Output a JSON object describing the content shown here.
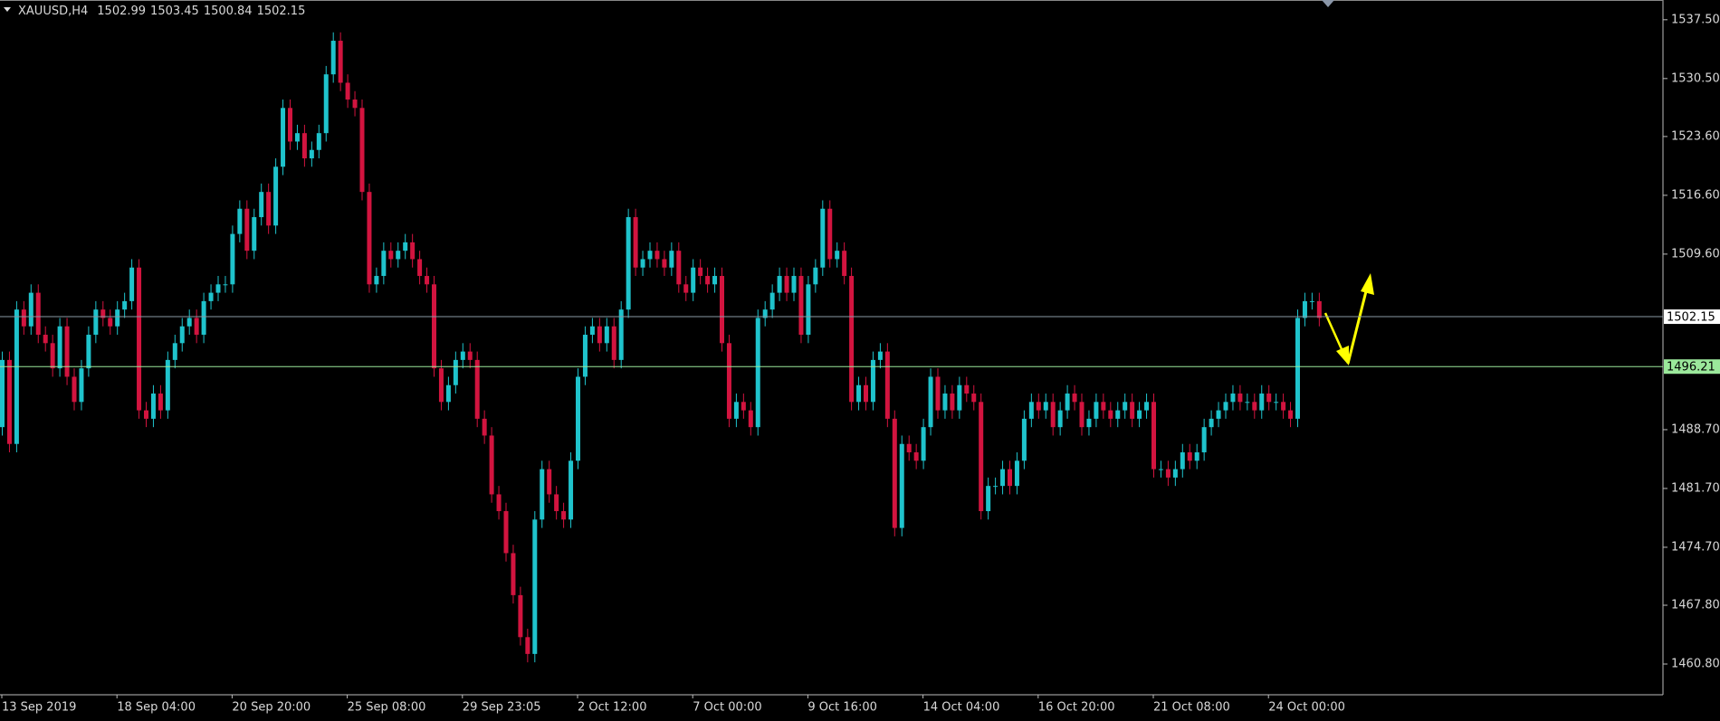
{
  "chart_data": {
    "type": "candlestick",
    "symbol": "XAUUSD,H4",
    "ohlc_readout": [
      1502.99,
      1503.45,
      1500.84,
      1502.15
    ],
    "up_color": "#1fc3cc",
    "down_color": "#d2143f",
    "ylim": [
      1457.14,
      1539.85
    ],
    "yticks": [
      {
        "value": 1460.8,
        "label": "1460.80"
      },
      {
        "value": 1467.8,
        "label": "1467.80"
      },
      {
        "value": 1474.7,
        "label": "1474.70"
      },
      {
        "value": 1481.7,
        "label": "1481.70"
      },
      {
        "value": 1488.7,
        "label": "1488.70"
      },
      {
        "value": 1509.6,
        "label": "1509.60"
      },
      {
        "value": 1516.6,
        "label": "1516.60"
      },
      {
        "value": 1523.6,
        "label": "1523.60"
      },
      {
        "value": 1530.5,
        "label": "1530.50"
      },
      {
        "value": 1537.5,
        "label": "1537.50"
      }
    ],
    "hlines": [
      {
        "value": 1502.15,
        "color": "#8a9aa4",
        "label_bg": "#ffffff"
      },
      {
        "value": 1496.21,
        "color": "#9be89b",
        "label_bg": "#9be89b"
      }
    ],
    "categories": [
      "13 Sep 2019",
      null,
      null,
      null,
      null,
      null,
      null,
      null,
      null,
      null,
      null,
      null,
      null,
      null,
      null,
      null,
      "18 Sep 04:00",
      null,
      null,
      null,
      null,
      null,
      null,
      null,
      null,
      null,
      null,
      null,
      null,
      null,
      null,
      null,
      "20 Sep 20:00",
      null,
      null,
      null,
      null,
      null,
      null,
      null,
      null,
      null,
      null,
      null,
      null,
      null,
      null,
      null,
      "25 Sep 08:00",
      null,
      null,
      null,
      null,
      null,
      null,
      null,
      null,
      null,
      null,
      null,
      null,
      null,
      null,
      null,
      "29 Sep 23:05",
      null,
      null,
      null,
      null,
      null,
      null,
      null,
      null,
      null,
      null,
      null,
      null,
      null,
      null,
      null,
      "2 Oct 12:00",
      null,
      null,
      null,
      null,
      null,
      null,
      null,
      null,
      null,
      null,
      null,
      null,
      null,
      null,
      null,
      "7 Oct 00:00",
      null,
      null,
      null,
      null,
      null,
      null,
      null,
      null,
      null,
      null,
      null,
      null,
      null,
      null,
      null,
      "9 Oct 16:00",
      null,
      null,
      null,
      null,
      null,
      null,
      null,
      null,
      null,
      null,
      null,
      null,
      null,
      null,
      null,
      "14 Oct 04:00",
      null,
      null,
      null,
      null,
      null,
      null,
      null,
      null,
      null,
      null,
      null,
      null,
      null,
      null,
      null,
      "16 Oct 20:00",
      null,
      null,
      null,
      null,
      null,
      null,
      null,
      null,
      null,
      null,
      null,
      null,
      null,
      null,
      null,
      "21 Oct 08:00",
      null,
      null,
      null,
      null,
      null,
      null,
      null,
      null,
      null,
      null,
      null,
      null,
      null,
      null,
      null,
      "24 Oct 00:00",
      null,
      null,
      null,
      null,
      null,
      null,
      null
    ],
    "open": [
      1489,
      1497,
      1487,
      1503,
      1501,
      1505,
      1500,
      1499,
      1496,
      1501,
      1495,
      1492,
      1496,
      1500,
      1503,
      1502,
      1501,
      1503,
      1504,
      1508,
      1491,
      1490,
      1493,
      1491,
      1497,
      1499,
      1501,
      1502,
      1500,
      1504,
      1505,
      1506,
      1506,
      1512,
      1515,
      1510,
      1514,
      1517,
      1513,
      1520,
      1527,
      1523,
      1524,
      1521,
      1522,
      1524,
      1531,
      1535,
      1530,
      1528,
      1527,
      1517,
      1506,
      1507,
      1510,
      1509,
      1510,
      1511,
      1509,
      1507,
      1506,
      1496,
      1492,
      1494,
      1497,
      1498,
      1497,
      1490,
      1488,
      1481,
      1479,
      1474,
      1469,
      1464,
      1462,
      1478,
      1484,
      1481,
      1479,
      1478,
      1485,
      1495,
      1500,
      1501,
      1499,
      1501,
      1497,
      1503,
      1514,
      1508,
      1509,
      1510,
      1509,
      1508,
      1510,
      1506,
      1505,
      1508,
      1507,
      1506,
      1507,
      1499,
      1490,
      1492,
      1491,
      1489,
      1502,
      1503,
      1505,
      1507,
      1505,
      1507,
      1500,
      1506,
      1508,
      1515,
      1509,
      1510,
      1507,
      1492,
      1494,
      1492,
      1497,
      1498,
      1490,
      1477,
      1487,
      1486,
      1485,
      1489,
      1495,
      1491,
      1493,
      1491,
      1494,
      1493,
      1492,
      1479,
      1482,
      1482,
      1484,
      1482,
      1485,
      1490,
      1492,
      1491,
      1492,
      1489,
      1491,
      1493,
      1492,
      1489,
      1490,
      1492,
      1491,
      1490,
      1491,
      1492,
      1490,
      1491,
      1492,
      1484,
      1484,
      1483,
      1484,
      1486,
      1485,
      1486,
      1489,
      1490,
      1491,
      1492,
      1493,
      1492,
      1492,
      1491,
      1493,
      1492,
      1492,
      1491,
      1490,
      1502,
      1504,
      1504
    ],
    "high": [
      1498,
      1498,
      1504,
      1504,
      1506,
      1506,
      1501,
      1500,
      1502,
      1502,
      1496,
      1497,
      1501,
      1504,
      1504,
      1503,
      1504,
      1505,
      1509,
      1509,
      1492,
      1494,
      1494,
      1498,
      1500,
      1502,
      1503,
      1503,
      1505,
      1506,
      1507,
      1507,
      1513,
      1516,
      1516,
      1515,
      1518,
      1518,
      1521,
      1528,
      1528,
      1525,
      1525,
      1523,
      1525,
      1532,
      1536,
      1536,
      1531,
      1529,
      1528,
      1518,
      1508,
      1511,
      1511,
      1511,
      1512,
      1512,
      1510,
      1508,
      1507,
      1497,
      1495,
      1498,
      1499,
      1499,
      1498,
      1491,
      1489,
      1482,
      1480,
      1475,
      1470,
      1465,
      1479,
      1485,
      1485,
      1482,
      1480,
      1486,
      1496,
      1501,
      1502,
      1502,
      1502,
      1502,
      1504,
      1515,
      1515,
      1510,
      1511,
      1511,
      1510,
      1511,
      1511,
      1507,
      1509,
      1509,
      1508,
      1508,
      1508,
      1500,
      1493,
      1493,
      1492,
      1503,
      1504,
      1506,
      1508,
      1508,
      1508,
      1508,
      1507,
      1509,
      1516,
      1516,
      1511,
      1511,
      1508,
      1495,
      1495,
      1498,
      1499,
      1499,
      1491,
      1488,
      1488,
      1487,
      1490,
      1496,
      1496,
      1494,
      1494,
      1495,
      1495,
      1494,
      1493,
      1483,
      1483,
      1485,
      1485,
      1486,
      1491,
      1493,
      1493,
      1493,
      1493,
      1492,
      1494,
      1494,
      1493,
      1491,
      1493,
      1493,
      1492,
      1492,
      1493,
      1493,
      1492,
      1493,
      1493,
      1485,
      1485,
      1485,
      1487,
      1487,
      1487,
      1490,
      1491,
      1492,
      1493,
      1494,
      1494,
      1493,
      1493,
      1494,
      1494,
      1493,
      1493,
      1492,
      1503,
      1505,
      1505,
      1505
    ],
    "low": [
      1488,
      1486,
      1486,
      1500,
      1500,
      1499,
      1498,
      1495,
      1495,
      1494,
      1491,
      1491,
      1495,
      1499,
      1501,
      1500,
      1500,
      1502,
      1503,
      1490,
      1489,
      1489,
      1490,
      1490,
      1496,
      1498,
      1500,
      1499,
      1499,
      1503,
      1504,
      1505,
      1505,
      1511,
      1509,
      1509,
      1513,
      1512,
      1512,
      1519,
      1522,
      1522,
      1520,
      1520,
      1521,
      1523,
      1530,
      1529,
      1527,
      1526,
      1516,
      1505,
      1505,
      1506,
      1508,
      1508,
      1509,
      1508,
      1506,
      1505,
      1495,
      1491,
      1491,
      1493,
      1496,
      1496,
      1489,
      1487,
      1480,
      1478,
      1473,
      1468,
      1463,
      1461,
      1461,
      1477,
      1480,
      1478,
      1477,
      1477,
      1484,
      1494,
      1499,
      1498,
      1498,
      1496,
      1496,
      1502,
      1507,
      1507,
      1508,
      1508,
      1507,
      1507,
      1505,
      1504,
      1504,
      1506,
      1505,
      1505,
      1498,
      1489,
      1489,
      1490,
      1488,
      1488,
      1501,
      1502,
      1504,
      1504,
      1504,
      1499,
      1499,
      1505,
      1507,
      1508,
      1508,
      1506,
      1491,
      1491,
      1491,
      1491,
      1496,
      1489,
      1476,
      1476,
      1485,
      1484,
      1484,
      1488,
      1490,
      1490,
      1490,
      1490,
      1492,
      1491,
      1478,
      1478,
      1481,
      1481,
      1481,
      1481,
      1484,
      1489,
      1490,
      1490,
      1488,
      1488,
      1490,
      1491,
      1488,
      1488,
      1489,
      1490,
      1489,
      1489,
      1490,
      1489,
      1489,
      1490,
      1483,
      1483,
      1482,
      1482,
      1483,
      1484,
      1484,
      1485,
      1488,
      1489,
      1490,
      1491,
      1491,
      1491,
      1490,
      1490,
      1491,
      1491,
      1490,
      1489,
      1489,
      1501,
      1503,
      1501
    ],
    "close": [
      1497,
      1487,
      1503,
      1501,
      1505,
      1500,
      1499,
      1496,
      1501,
      1495,
      1492,
      1496,
      1500,
      1503,
      1502,
      1501,
      1503,
      1504,
      1508,
      1491,
      1490,
      1493,
      1491,
      1497,
      1499,
      1501,
      1502,
      1500,
      1504,
      1505,
      1506,
      1506,
      1512,
      1515,
      1510,
      1514,
      1517,
      1513,
      1520,
      1527,
      1523,
      1524,
      1521,
      1522,
      1524,
      1531,
      1535,
      1530,
      1528,
      1527,
      1517,
      1506,
      1507,
      1510,
      1509,
      1510,
      1511,
      1509,
      1507,
      1506,
      1496,
      1492,
      1494,
      1497,
      1498,
      1497,
      1490,
      1488,
      1481,
      1479,
      1474,
      1469,
      1464,
      1462,
      1478,
      1484,
      1481,
      1479,
      1478,
      1485,
      1495,
      1500,
      1501,
      1499,
      1501,
      1497,
      1503,
      1514,
      1508,
      1509,
      1510,
      1509,
      1508,
      1510,
      1506,
      1505,
      1508,
      1507,
      1506,
      1507,
      1499,
      1490,
      1492,
      1491,
      1489,
      1502,
      1503,
      1505,
      1507,
      1505,
      1507,
      1500,
      1506,
      1508,
      1515,
      1509,
      1510,
      1507,
      1492,
      1494,
      1492,
      1497,
      1498,
      1490,
      1477,
      1487,
      1486,
      1485,
      1489,
      1495,
      1491,
      1493,
      1491,
      1494,
      1493,
      1492,
      1479,
      1482,
      1482,
      1484,
      1482,
      1485,
      1490,
      1492,
      1491,
      1492,
      1489,
      1491,
      1493,
      1492,
      1489,
      1490,
      1492,
      1491,
      1490,
      1491,
      1492,
      1490,
      1491,
      1492,
      1484,
      1484,
      1483,
      1484,
      1486,
      1485,
      1486,
      1489,
      1490,
      1491,
      1492,
      1493,
      1492,
      1492,
      1491,
      1493,
      1492,
      1492,
      1491,
      1490,
      1502,
      1504,
      1504,
      1502
    ]
  }
}
